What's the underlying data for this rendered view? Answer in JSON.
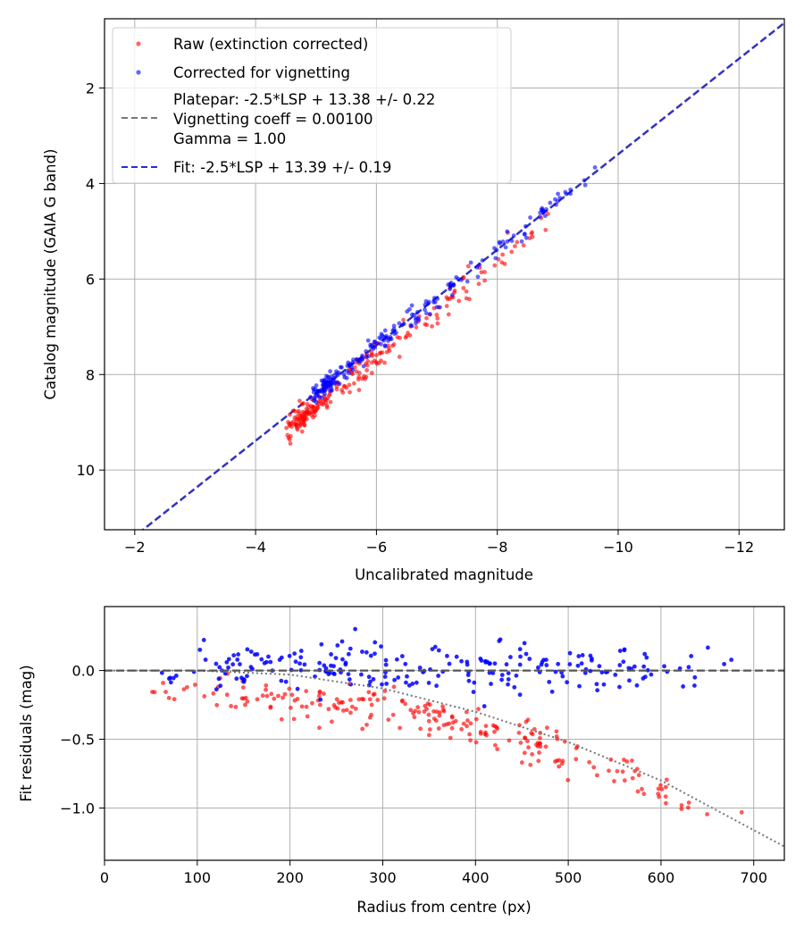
{
  "chart_data": [
    {
      "type": "scatter",
      "title": "",
      "xlabel": "Uncalibrated magnitude",
      "ylabel": "Catalog magnitude (GAIA G band)",
      "xlim": [
        -1.5,
        -12.75
      ],
      "ylim": [
        11.25,
        0.55
      ],
      "x_inverted": true,
      "y_inverted": true,
      "xticks": [
        -2,
        -4,
        -6,
        -8,
        -10,
        -12
      ],
      "xtick_labels": [
        "−2",
        "−4",
        "−6",
        "−8",
        "−10",
        "−12"
      ],
      "yticks": [
        2,
        4,
        6,
        8,
        10
      ],
      "ytick_labels": [
        "2",
        "4",
        "6",
        "8",
        "10"
      ],
      "grid": true,
      "legend_position": "upper-left",
      "series": [
        {
          "name": "Raw (extinction corrected)",
          "kind": "scatter",
          "color": "#ff0000",
          "alpha": 0.6,
          "n": 230,
          "trend": {
            "slope": 1,
            "intercept": 13.66,
            "x_range": [
              -4.7,
              -8.9
            ],
            "scatter": 0.28
          }
        },
        {
          "name": "Corrected for vignetting",
          "kind": "scatter",
          "color": "#0000ff",
          "alpha": 0.6,
          "n": 230,
          "trend": {
            "slope": 1,
            "intercept": 13.39,
            "x_range": [
              -5.1,
              -9.5
            ],
            "scatter": 0.19
          }
        },
        {
          "name": "Platepar: -2.5*LSP + 13.38 +/- 0.22\nVignetting coeff = 0.00100\nGamma = 1.00",
          "kind": "line",
          "style": "dashed",
          "color": "#777777",
          "slope": 1,
          "intercept": 13.38
        },
        {
          "name": "Fit: -2.5*LSP + 13.39 +/- 0.19",
          "kind": "line",
          "style": "dashed",
          "color": "#2a2ad6",
          "slope": 1,
          "intercept": 13.39
        }
      ],
      "legend": [
        {
          "label": "Raw (extinction corrected)",
          "marker": "dot",
          "color": "#ff0000"
        },
        {
          "label": "Corrected for vignetting",
          "marker": "dot",
          "color": "#0000ff"
        },
        {
          "label": "Platepar: -2.5*LSP + 13.38 +/- 0.22",
          "marker": "dash",
          "color": "#777777"
        },
        {
          "label": "Vignetting coeff = 0.00100",
          "marker": "none",
          "color": "#777777"
        },
        {
          "label": "Gamma = 1.00",
          "marker": "none",
          "color": "#777777"
        },
        {
          "label": "Fit: -2.5*LSP + 13.39 +/- 0.19",
          "marker": "dash",
          "color": "#2a2ad6"
        }
      ]
    },
    {
      "type": "scatter",
      "title": "",
      "xlabel": "Radius from centre (px)",
      "ylabel": "Fit residuals (mag)",
      "xlim": [
        0,
        733
      ],
      "ylim": [
        -1.38,
        0.465
      ],
      "xticks": [
        0,
        100,
        200,
        300,
        400,
        500,
        600,
        700
      ],
      "xtick_labels": [
        "0",
        "100",
        "200",
        "300",
        "400",
        "500",
        "600",
        "700"
      ],
      "yticks": [
        0.0,
        -0.5,
        -1.0
      ],
      "ytick_labels": [
        "0.0",
        "−0.5",
        "−1.0"
      ],
      "grid": true,
      "series": [
        {
          "name": "",
          "kind": "scatter",
          "color": "#ff0000",
          "alpha": 0.65,
          "n": 230,
          "trend": {
            "model": "vignetting",
            "coeff": 0.001,
            "knee": 100,
            "scatter": 0.14,
            "r_range": [
              38,
              690
            ]
          }
        },
        {
          "name": "",
          "kind": "scatter",
          "color": "#0000ff",
          "alpha": 0.85,
          "n": 230,
          "trend": {
            "model": "flat",
            "scatter": 0.17,
            "r_range": [
              38,
              690
            ]
          }
        },
        {
          "name": "",
          "kind": "line",
          "style": "dotted",
          "color": "#777777",
          "points": [
            [
              0,
              0.0
            ],
            [
              100,
              0.0
            ],
            [
              200,
              -0.03
            ],
            [
              300,
              -0.13
            ],
            [
              400,
              -0.3
            ],
            [
              500,
              -0.52
            ],
            [
              600,
              -0.8
            ],
            [
              733,
              -1.28
            ]
          ]
        },
        {
          "name": "",
          "kind": "line",
          "style": "dashed",
          "color": "#555555",
          "points": [
            [
              0,
              0.0
            ],
            [
              733,
              0.0
            ]
          ]
        }
      ]
    }
  ]
}
